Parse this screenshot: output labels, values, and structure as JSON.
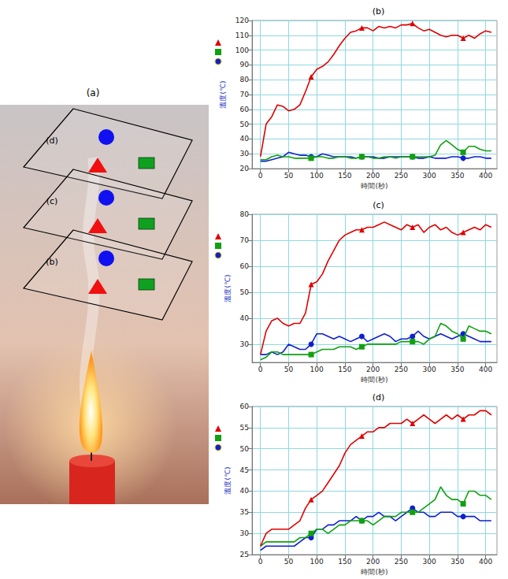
{
  "figure": {
    "label": "(a)",
    "planes": [
      "(d)",
      "(c)",
      "(b)"
    ]
  },
  "chart_data": [
    {
      "type": "line",
      "title": "(b)",
      "x_label": "時間(秒)",
      "y_label": "溫度(℃)",
      "grid": true,
      "xlim": [
        -15,
        420
      ],
      "xticks": [
        0,
        50,
        100,
        150,
        200,
        250,
        300,
        350,
        400
      ],
      "ylim": [
        20,
        120
      ],
      "yticks": [
        20,
        30,
        40,
        50,
        60,
        70,
        80,
        90,
        100,
        110,
        120
      ],
      "x": [
        0,
        10,
        20,
        30,
        40,
        50,
        60,
        70,
        80,
        90,
        100,
        110,
        120,
        130,
        140,
        150,
        160,
        170,
        180,
        190,
        200,
        210,
        220,
        230,
        240,
        250,
        260,
        270,
        280,
        290,
        300,
        310,
        320,
        330,
        340,
        350,
        360,
        370,
        380,
        390,
        400,
        410
      ],
      "series": [
        {
          "color": "#e00000",
          "marker": "triangle",
          "values": [
            28,
            50,
            55,
            63,
            62,
            59,
            60,
            63,
            72,
            82,
            87,
            89,
            92,
            97,
            103,
            108,
            112,
            113,
            115,
            115,
            113,
            116,
            115,
            116,
            115,
            117,
            117,
            118,
            115,
            113,
            114,
            112,
            110,
            109,
            110,
            110,
            108,
            110,
            108,
            111,
            113,
            112
          ]
        },
        {
          "color": "#10a010",
          "marker": "rect",
          "values": [
            26,
            26,
            28,
            29,
            28,
            28,
            27,
            27,
            27,
            27,
            28,
            28,
            27,
            27,
            28,
            28,
            27,
            27,
            28,
            28,
            27,
            27,
            28,
            28,
            27,
            28,
            28,
            28,
            28,
            28,
            28,
            29,
            36,
            39,
            36,
            33,
            31,
            35,
            35,
            33,
            32,
            32
          ]
        },
        {
          "color": "#1020d0",
          "marker": "circle",
          "values": [
            25,
            25,
            26,
            27,
            28,
            31,
            30,
            29,
            29,
            28,
            28,
            30,
            29,
            28,
            28,
            28,
            28,
            27,
            28,
            28,
            28,
            27,
            27,
            28,
            28,
            28,
            28,
            28,
            27,
            27,
            28,
            27,
            27,
            27,
            28,
            28,
            27,
            27,
            28,
            28,
            27,
            27
          ]
        }
      ]
    },
    {
      "type": "line",
      "title": "(c)",
      "x_label": "時間(秒)",
      "y_label": "溫度(℃)",
      "grid": true,
      "xlim": [
        -15,
        420
      ],
      "xticks": [
        0,
        50,
        100,
        150,
        200,
        250,
        300,
        350,
        400
      ],
      "ylim": [
        23,
        80
      ],
      "yticks": [
        30,
        40,
        50,
        60,
        70,
        80
      ],
      "x": [
        0,
        10,
        20,
        30,
        40,
        50,
        60,
        70,
        80,
        90,
        100,
        110,
        120,
        130,
        140,
        150,
        160,
        170,
        180,
        190,
        200,
        210,
        220,
        230,
        240,
        250,
        260,
        270,
        280,
        290,
        300,
        310,
        320,
        330,
        340,
        350,
        360,
        370,
        380,
        390,
        400,
        410
      ],
      "series": [
        {
          "color": "#e00000",
          "marker": "triangle",
          "values": [
            26,
            35,
            39,
            40,
            38,
            37,
            38,
            38,
            42,
            53,
            54,
            57,
            62,
            66,
            70,
            72,
            73,
            74,
            74,
            75,
            75,
            76,
            77,
            76,
            75,
            74,
            76,
            75,
            76,
            73,
            75,
            76,
            74,
            75,
            73,
            72,
            73,
            74,
            75,
            74,
            76,
            75
          ]
        },
        {
          "color": "#10a010",
          "marker": "rect",
          "values": [
            24,
            25,
            27,
            27,
            26,
            26,
            26,
            26,
            26,
            26,
            27,
            28,
            28,
            28,
            29,
            29,
            29,
            28,
            29,
            30,
            30,
            30,
            30,
            30,
            30,
            31,
            31,
            31,
            31,
            30,
            32,
            33,
            38,
            37,
            35,
            34,
            32,
            37,
            36,
            35,
            35,
            34
          ]
        },
        {
          "color": "#1020d0",
          "marker": "circle",
          "values": [
            26,
            26,
            27,
            26,
            27,
            30,
            29,
            28,
            28,
            30,
            34,
            34,
            33,
            32,
            33,
            32,
            31,
            32,
            33,
            31,
            32,
            33,
            34,
            33,
            31,
            32,
            32,
            33,
            35,
            33,
            32,
            33,
            34,
            33,
            32,
            33,
            34,
            33,
            32,
            31,
            31,
            31
          ]
        }
      ]
    },
    {
      "type": "line",
      "title": "(d)",
      "x_label": "時間(秒)",
      "y_label": "溫度(℃)",
      "grid": true,
      "xlim": [
        -15,
        420
      ],
      "xticks": [
        0,
        50,
        100,
        150,
        200,
        250,
        300,
        350,
        400
      ],
      "ylim": [
        25,
        60
      ],
      "yticks": [
        25,
        30,
        35,
        40,
        45,
        50,
        55,
        60
      ],
      "x": [
        0,
        10,
        20,
        30,
        40,
        50,
        60,
        70,
        80,
        90,
        100,
        110,
        120,
        130,
        140,
        150,
        160,
        170,
        180,
        190,
        200,
        210,
        220,
        230,
        240,
        250,
        260,
        270,
        280,
        290,
        300,
        310,
        320,
        330,
        340,
        350,
        360,
        370,
        380,
        390,
        400,
        410
      ],
      "series": [
        {
          "color": "#e00000",
          "marker": "triangle",
          "values": [
            27,
            30,
            31,
            31,
            31,
            31,
            32,
            33,
            36,
            38,
            39,
            40,
            42,
            44,
            46,
            49,
            51,
            52,
            53,
            54,
            54,
            55,
            55,
            56,
            56,
            56,
            57,
            56,
            57,
            58,
            57,
            56,
            57,
            58,
            57,
            58,
            57,
            58,
            58,
            59,
            59,
            58
          ]
        },
        {
          "color": "#10a010",
          "marker": "rect",
          "values": [
            27,
            28,
            28,
            28,
            28,
            28,
            28,
            29,
            29,
            30,
            31,
            31,
            30,
            31,
            32,
            32,
            33,
            33,
            33,
            33,
            32,
            33,
            34,
            34,
            34,
            35,
            35,
            35,
            35,
            36,
            37,
            38,
            41,
            39,
            38,
            38,
            37,
            40,
            40,
            39,
            39,
            38
          ]
        },
        {
          "color": "#1020d0",
          "marker": "circle",
          "values": [
            26,
            27,
            27,
            27,
            27,
            27,
            27,
            28,
            29,
            29,
            31,
            31,
            32,
            32,
            33,
            33,
            33,
            34,
            33,
            34,
            34,
            35,
            34,
            34,
            33,
            34,
            35,
            36,
            35,
            35,
            34,
            34,
            35,
            35,
            35,
            34,
            34,
            34,
            34,
            33,
            33,
            33
          ]
        }
      ]
    }
  ]
}
